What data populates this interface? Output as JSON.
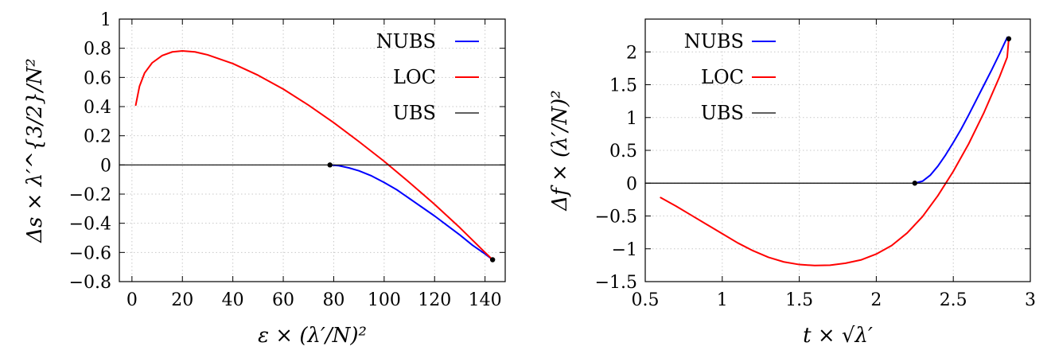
{
  "chart_data": [
    {
      "type": "line",
      "xlabel": "ε × (λ′/N)²",
      "ylabel": "Δs × λ′^{3/2}/N²",
      "xlim": [
        -5,
        148
      ],
      "ylim": [
        -0.8,
        1.0
      ],
      "xticks": [
        0,
        20,
        40,
        60,
        80,
        100,
        120,
        140
      ],
      "xtick_labels": [
        "0",
        "20",
        "40",
        "60",
        "80",
        "100",
        "120",
        "140"
      ],
      "yticks": [
        -0.8,
        -0.6,
        -0.4,
        -0.2,
        0,
        0.2,
        0.4,
        0.6,
        0.8,
        1
      ],
      "ytick_labels": [
        "−0.8",
        "−0.6",
        "−0.4",
        "−0.2",
        "0",
        "0.2",
        "0.4",
        "0.6",
        "0.8",
        "1"
      ],
      "grid": true,
      "legend_position": "top-right",
      "series": [
        {
          "name": "NUBS",
          "color": "#0000ff",
          "points": [
            [
              78.5,
              0.0
            ],
            [
              82,
              -0.005
            ],
            [
              86,
              -0.02
            ],
            [
              90,
              -0.04
            ],
            [
              95,
              -0.075
            ],
            [
              100,
              -0.12
            ],
            [
              105,
              -0.17
            ],
            [
              110,
              -0.23
            ],
            [
              115,
              -0.29
            ],
            [
              120,
              -0.35
            ],
            [
              125,
              -0.415
            ],
            [
              130,
              -0.48
            ],
            [
              135,
              -0.55
            ],
            [
              140,
              -0.61
            ],
            [
              143,
              -0.65
            ]
          ]
        },
        {
          "name": "LOC",
          "color": "#ff0000",
          "points": [
            [
              1.5,
              0.41
            ],
            [
              3,
              0.54
            ],
            [
              5,
              0.63
            ],
            [
              8,
              0.7
            ],
            [
              12,
              0.75
            ],
            [
              16,
              0.775
            ],
            [
              20,
              0.782
            ],
            [
              25,
              0.775
            ],
            [
              30,
              0.755
            ],
            [
              40,
              0.695
            ],
            [
              50,
              0.615
            ],
            [
              60,
              0.52
            ],
            [
              70,
              0.41
            ],
            [
              80,
              0.29
            ],
            [
              90,
              0.16
            ],
            [
              100,
              0.025
            ],
            [
              110,
              -0.12
            ],
            [
              120,
              -0.27
            ],
            [
              130,
              -0.43
            ],
            [
              140,
              -0.6
            ],
            [
              143,
              -0.65
            ]
          ]
        },
        {
          "name": "UBS",
          "color": "#000000",
          "points": [
            [
              -5,
              0
            ],
            [
              148,
              0
            ]
          ]
        }
      ],
      "markers": [
        [
          78.5,
          0.0
        ],
        [
          143,
          -0.65
        ]
      ]
    },
    {
      "type": "line",
      "xlabel": "t × √λ′",
      "ylabel": "Δf × (λ′/N)²",
      "xlim": [
        0.5,
        3.0
      ],
      "ylim": [
        -1.5,
        2.5
      ],
      "xticks": [
        0.5,
        1,
        1.5,
        2,
        2.5,
        3
      ],
      "xtick_labels": [
        "0.5",
        "1",
        "1.5",
        "2",
        "2.5",
        "3"
      ],
      "yticks": [
        -1.5,
        -1,
        -0.5,
        0,
        0.5,
        1,
        1.5,
        2
      ],
      "ytick_labels": [
        "−1.5",
        "−1",
        "−0.5",
        "0",
        "0.5",
        "1",
        "1.5",
        "2"
      ],
      "grid": true,
      "legend_position": "top-left",
      "series": [
        {
          "name": "NUBS",
          "color": "#0000ff",
          "points": [
            [
              2.25,
              0.0
            ],
            [
              2.3,
              0.03
            ],
            [
              2.35,
              0.12
            ],
            [
              2.4,
              0.26
            ],
            [
              2.45,
              0.43
            ],
            [
              2.5,
              0.62
            ],
            [
              2.55,
              0.82
            ],
            [
              2.6,
              1.04
            ],
            [
              2.65,
              1.27
            ],
            [
              2.7,
              1.5
            ],
            [
              2.75,
              1.73
            ],
            [
              2.8,
              1.97
            ],
            [
              2.85,
              2.22
            ]
          ]
        },
        {
          "name": "LOC",
          "color": "#ff0000",
          "points": [
            [
              0.6,
              -0.22
            ],
            [
              0.7,
              -0.35
            ],
            [
              0.8,
              -0.49
            ],
            [
              0.9,
              -0.63
            ],
            [
              1.0,
              -0.77
            ],
            [
              1.1,
              -0.91
            ],
            [
              1.2,
              -1.03
            ],
            [
              1.3,
              -1.13
            ],
            [
              1.4,
              -1.2
            ],
            [
              1.5,
              -1.24
            ],
            [
              1.6,
              -1.255
            ],
            [
              1.7,
              -1.25
            ],
            [
              1.8,
              -1.22
            ],
            [
              1.9,
              -1.17
            ],
            [
              2.0,
              -1.08
            ],
            [
              2.1,
              -0.95
            ],
            [
              2.2,
              -0.76
            ],
            [
              2.3,
              -0.51
            ],
            [
              2.4,
              -0.19
            ],
            [
              2.5,
              0.18
            ],
            [
              2.6,
              0.6
            ],
            [
              2.7,
              1.08
            ],
            [
              2.8,
              1.62
            ],
            [
              2.85,
              1.92
            ],
            [
              2.86,
              2.2
            ]
          ]
        },
        {
          "name": "UBS",
          "color": "#000000",
          "points": [
            [
              0.5,
              0
            ],
            [
              3.0,
              0
            ]
          ]
        }
      ],
      "markers": [
        [
          2.25,
          0.0
        ],
        [
          2.86,
          2.2
        ]
      ]
    }
  ]
}
